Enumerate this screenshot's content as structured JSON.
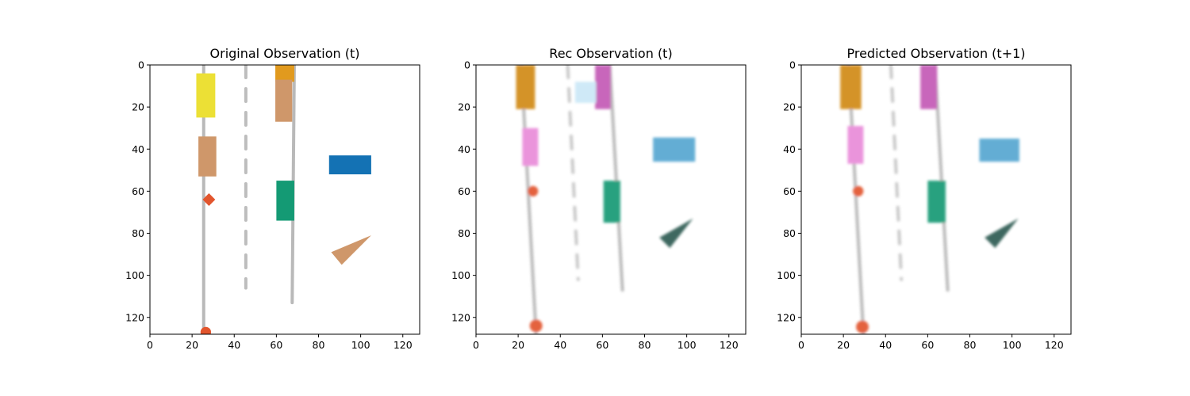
{
  "figure": {
    "background": "#ffffff"
  },
  "chart_data": [
    {
      "type": "image",
      "title": "Original Observation (t)",
      "xlim": [
        0,
        128
      ],
      "ylim": [
        128,
        0
      ],
      "xticks": [
        0,
        20,
        40,
        60,
        80,
        100,
        120
      ],
      "yticks": [
        0,
        20,
        40,
        60,
        80,
        100,
        120
      ],
      "style": "sharp",
      "objects": [
        {
          "kind": "dashed-line",
          "name": "left-road-line",
          "x1": 25.5,
          "y1": 0,
          "x2": 25.5,
          "y2": 128,
          "color": "#b9b9b9",
          "dash": "solid"
        },
        {
          "kind": "dashed-line",
          "name": "center-dashed-line",
          "x1": 45.5,
          "y1": 0,
          "x2": 45.5,
          "y2": 106,
          "color": "#bdbdbd",
          "dash": "dashed"
        },
        {
          "kind": "dashed-line",
          "name": "right-road-line",
          "x1": 68.5,
          "y1": 0,
          "x2": 67.5,
          "y2": 113,
          "color": "#b9b9b9",
          "dash": "solid"
        },
        {
          "kind": "rect",
          "name": "yellow-vehicle",
          "x": 22,
          "y": 4,
          "w": 9,
          "h": 21,
          "color": "#ece035"
        },
        {
          "kind": "rect",
          "name": "orange-vehicle",
          "x": 59.5,
          "y": 0,
          "w": 9,
          "h": 8,
          "color": "#e19a1e"
        },
        {
          "kind": "rect",
          "name": "tan-vehicle-top",
          "x": 59.5,
          "y": 7,
          "w": 8,
          "h": 20,
          "color": "#cf976a"
        },
        {
          "kind": "rect",
          "name": "tan-vehicle-left",
          "x": 23,
          "y": 34,
          "w": 8.5,
          "h": 19,
          "color": "#cf976a"
        },
        {
          "kind": "rect",
          "name": "green-vehicle",
          "x": 60,
          "y": 55,
          "w": 8.5,
          "h": 19,
          "color": "#149a74"
        },
        {
          "kind": "rect",
          "name": "blue-vehicle",
          "x": 85,
          "y": 43,
          "w": 20,
          "h": 9,
          "color": "#1472b4"
        },
        {
          "kind": "poly",
          "name": "tan-triangle",
          "points": [
            [
              86,
              89
            ],
            [
              105,
              81
            ],
            [
              91,
              95
            ]
          ],
          "color": "#cf976a"
        },
        {
          "kind": "diamond",
          "name": "red-diamond",
          "cx": 28,
          "cy": 64,
          "r": 3,
          "color": "#e2552d"
        },
        {
          "kind": "circle",
          "name": "red-dot-bottom",
          "cx": 26.5,
          "cy": 127,
          "r": 2.5,
          "color": "#e2552d"
        }
      ]
    },
    {
      "type": "image",
      "title": "Rec Observation (t)",
      "xlim": [
        0,
        128
      ],
      "ylim": [
        128,
        0
      ],
      "xticks": [
        0,
        20,
        40,
        60,
        80,
        100,
        120
      ],
      "yticks": [
        0,
        20,
        40,
        60,
        80,
        100,
        120
      ],
      "style": "blurred",
      "objects": [
        {
          "kind": "dashed-line",
          "name": "left-road-line",
          "x1": 21.5,
          "y1": 0,
          "x2": 28.5,
          "y2": 128,
          "color": "#b4b4b4",
          "dash": "solid"
        },
        {
          "kind": "dashed-line",
          "name": "center-dashed-line",
          "x1": 43.5,
          "y1": 0,
          "x2": 48.5,
          "y2": 102,
          "color": "#c4c4c4",
          "dash": "dashed"
        },
        {
          "kind": "dashed-line",
          "name": "right-road-line",
          "x1": 63.5,
          "y1": 0,
          "x2": 69.5,
          "y2": 107,
          "color": "#b4b4b4",
          "dash": "solid"
        },
        {
          "kind": "rect",
          "name": "orange-vehicle",
          "x": 19,
          "y": 0,
          "w": 9,
          "h": 21,
          "color": "#d18a12"
        },
        {
          "kind": "rect",
          "name": "magenta-vehicle",
          "x": 56.5,
          "y": 0,
          "w": 7.5,
          "h": 21,
          "color": "#c45ab6"
        },
        {
          "kind": "rect",
          "name": "pink-vehicle",
          "x": 22,
          "y": 30,
          "w": 7.5,
          "h": 18,
          "color": "#e98bd9"
        },
        {
          "kind": "rect",
          "name": "green-vehicle",
          "x": 60.5,
          "y": 55,
          "w": 8,
          "h": 20,
          "color": "#149a74"
        },
        {
          "kind": "rect",
          "name": "blue-vehicle",
          "x": 84,
          "y": 34.5,
          "w": 20,
          "h": 11.5,
          "color": "#57a7d1"
        },
        {
          "kind": "rect",
          "name": "faint-cyan-blob",
          "x": 47,
          "y": 8,
          "w": 10,
          "h": 10,
          "color": "#cbe8f7"
        },
        {
          "kind": "poly",
          "name": "dark-green-triangle",
          "points": [
            [
              87,
              82
            ],
            [
              103,
              73
            ],
            [
              92,
              87
            ]
          ],
          "color": "#2f5b52"
        },
        {
          "kind": "circle",
          "name": "red-dot",
          "cx": 27,
          "cy": 60,
          "r": 2.5,
          "color": "#e2552d"
        },
        {
          "kind": "circle",
          "name": "red-dot-bottom",
          "cx": 28.5,
          "cy": 124,
          "r": 3,
          "color": "#e2552d"
        }
      ]
    },
    {
      "type": "image",
      "title": "Predicted Observation (t+1)",
      "xlim": [
        0,
        128
      ],
      "ylim": [
        128,
        0
      ],
      "xticks": [
        0,
        20,
        40,
        60,
        80,
        100,
        120
      ],
      "yticks": [
        0,
        20,
        40,
        60,
        80,
        100,
        120
      ],
      "style": "blurred",
      "objects": [
        {
          "kind": "dashed-line",
          "name": "left-road-line",
          "x1": 22.5,
          "y1": 0,
          "x2": 29.5,
          "y2": 128,
          "color": "#b4b4b4",
          "dash": "solid"
        },
        {
          "kind": "dashed-line",
          "name": "center-dashed-line",
          "x1": 42.5,
          "y1": 0,
          "x2": 47.5,
          "y2": 102,
          "color": "#c4c4c4",
          "dash": "dashed"
        },
        {
          "kind": "dashed-line",
          "name": "right-road-line",
          "x1": 63.5,
          "y1": 0,
          "x2": 69.5,
          "y2": 107,
          "color": "#b4b4b4",
          "dash": "solid"
        },
        {
          "kind": "rect",
          "name": "orange-vehicle",
          "x": 18.5,
          "y": 0,
          "w": 10,
          "h": 21,
          "color": "#d18a12"
        },
        {
          "kind": "rect",
          "name": "magenta-vehicle",
          "x": 56.5,
          "y": 0,
          "w": 8,
          "h": 21,
          "color": "#c45ab6"
        },
        {
          "kind": "rect",
          "name": "pink-vehicle",
          "x": 22,
          "y": 29,
          "w": 7.5,
          "h": 18,
          "color": "#e98bd9"
        },
        {
          "kind": "rect",
          "name": "green-vehicle",
          "x": 60,
          "y": 55,
          "w": 8.5,
          "h": 20,
          "color": "#149a74"
        },
        {
          "kind": "rect",
          "name": "blue-vehicle",
          "x": 84.5,
          "y": 35,
          "w": 19,
          "h": 11,
          "color": "#57a7d1"
        },
        {
          "kind": "poly",
          "name": "dark-green-triangle",
          "points": [
            [
              87,
              82
            ],
            [
              103,
              73
            ],
            [
              92,
              87
            ]
          ],
          "color": "#2f5b52"
        },
        {
          "kind": "circle",
          "name": "red-dot",
          "cx": 27,
          "cy": 60,
          "r": 2.5,
          "color": "#e2552d"
        },
        {
          "kind": "circle",
          "name": "red-dot-bottom",
          "cx": 29,
          "cy": 124.5,
          "r": 3,
          "color": "#e2552d"
        }
      ]
    }
  ]
}
